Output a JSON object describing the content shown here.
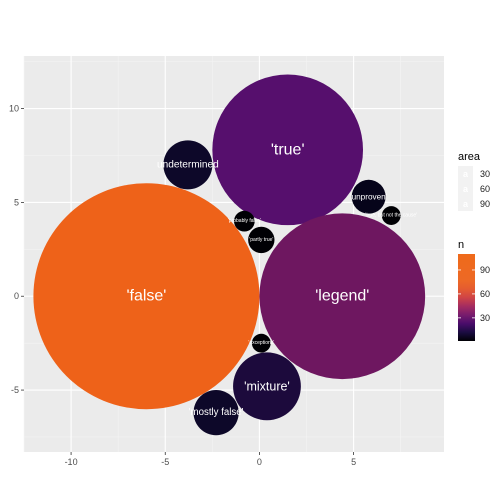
{
  "chart_data": {
    "type": "bubble",
    "xlim": [
      -12.5,
      9.8
    ],
    "ylim": [
      -8.3,
      12.8
    ],
    "x_ticks": [
      -10,
      -5,
      0,
      5
    ],
    "x_tick_labels": [
      "-10",
      "-5",
      "0",
      "5"
    ],
    "y_ticks": [
      -5,
      0,
      5,
      10
    ],
    "y_tick_labels": [
      "-5",
      "0",
      "5",
      "10"
    ],
    "grid": true,
    "bubbles": [
      {
        "label": "'false'",
        "x": -6.0,
        "y": 0.0,
        "r": 6.0,
        "n": 110,
        "color": "#ee6219"
      },
      {
        "label": "'true'",
        "x": 1.5,
        "y": 7.8,
        "r": 4.0,
        "n": 20,
        "color": "#560f6d"
      },
      {
        "label": "'legend'",
        "x": 4.4,
        "y": 0.0,
        "r": 4.4,
        "n": 48,
        "color": "#6e1760"
      },
      {
        "label": "undetermined",
        "x": -3.8,
        "y": 7.0,
        "r": 1.3,
        "n": 3,
        "color": "#0d0829"
      },
      {
        "label": "'mixture'",
        "x": 0.4,
        "y": -4.8,
        "r": 1.8,
        "n": 8,
        "color": "#1c0a3c"
      },
      {
        "label": "'mostly false'",
        "x": -2.3,
        "y": -6.2,
        "r": 1.2,
        "n": 3,
        "color": "#0d0829"
      },
      {
        "label": "'unproven'",
        "x": 5.8,
        "y": 5.3,
        "r": 0.9,
        "n": 2,
        "color": "#06041a"
      },
      {
        "label": "'probably false'",
        "x": -0.8,
        "y": 4.0,
        "r": 0.55,
        "n": 1,
        "color": "#000004"
      },
      {
        "label": "'partly true'",
        "x": 0.1,
        "y": 3.0,
        "r": 0.7,
        "n": 1,
        "color": "#000004"
      },
      {
        "label": "'exceptions'",
        "x": 0.1,
        "y": -2.5,
        "r": 0.5,
        "n": 1,
        "color": "#000004"
      },
      {
        "label": "'true, but not the cause'",
        "x": 7.0,
        "y": 4.3,
        "r": 0.5,
        "n": 1,
        "color": "#000004"
      }
    ],
    "legend_area": {
      "title": "area",
      "entries": [
        "30",
        "60",
        "90"
      ]
    },
    "legend_n": {
      "title": "n",
      "ticks": [
        30,
        60,
        90
      ],
      "tick_labels": [
        "30",
        "60",
        "90"
      ],
      "range": [
        1,
        110
      ]
    }
  }
}
